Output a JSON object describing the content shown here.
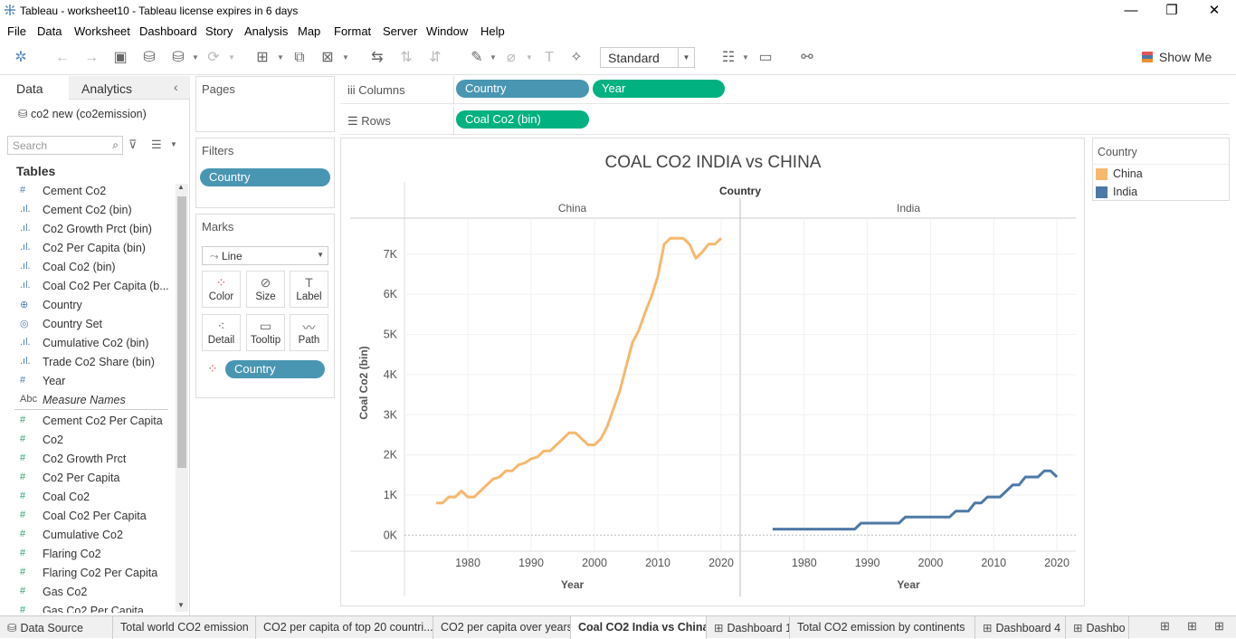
{
  "window": {
    "title": "Tableau - worksheet10 - Tableau license expires in 6 days",
    "minimize": "—",
    "restore": "❐",
    "close": "✕"
  },
  "menu": [
    "File",
    "Data",
    "Worksheet",
    "Dashboard",
    "Story",
    "Analysis",
    "Map",
    "Format",
    "Server",
    "Window",
    "Help"
  ],
  "toolbar": {
    "fit": "Standard",
    "show_me": "Show Me"
  },
  "left_panel": {
    "tab_data": "Data",
    "tab_analytics": "Analytics",
    "datasource": "co2 new (co2emission)",
    "search_placeholder": "Search",
    "tables_heading": "Tables",
    "fields": [
      {
        "icon": "#",
        "label": "Cement Co2",
        "kind": "dim"
      },
      {
        "icon": ".ıl.",
        "label": "Cement Co2 (bin)",
        "kind": "dim"
      },
      {
        "icon": ".ıl.",
        "label": "Co2 Growth Prct (bin)",
        "kind": "dim"
      },
      {
        "icon": ".ıl.",
        "label": "Co2 Per Capita (bin)",
        "kind": "dim"
      },
      {
        "icon": ".ıl.",
        "label": "Coal Co2 (bin)",
        "kind": "dim"
      },
      {
        "icon": ".ıl.",
        "label": "Coal Co2 Per Capita (b...",
        "kind": "dim"
      },
      {
        "icon": "⊕",
        "label": "Country",
        "kind": "dim"
      },
      {
        "icon": "◎",
        "label": "Country Set",
        "kind": "dim"
      },
      {
        "icon": ".ıl.",
        "label": "Cumulative Co2 (bin)",
        "kind": "dim"
      },
      {
        "icon": ".ıl.",
        "label": "Trade Co2 Share (bin)",
        "kind": "dim"
      },
      {
        "icon": "#",
        "label": "Year",
        "kind": "dim"
      },
      {
        "icon": "Abc",
        "label": "Measure Names",
        "kind": "measname"
      },
      {
        "icon": "#",
        "label": "Cement Co2 Per Capita",
        "kind": "meas"
      },
      {
        "icon": "#",
        "label": "Co2",
        "kind": "meas"
      },
      {
        "icon": "#",
        "label": "Co2 Growth Prct",
        "kind": "meas"
      },
      {
        "icon": "#",
        "label": "Co2 Per Capita",
        "kind": "meas"
      },
      {
        "icon": "#",
        "label": "Coal Co2",
        "kind": "meas"
      },
      {
        "icon": "#",
        "label": "Coal Co2 Per Capita",
        "kind": "meas"
      },
      {
        "icon": "#",
        "label": "Cumulative Co2",
        "kind": "meas"
      },
      {
        "icon": "#",
        "label": "Flaring Co2",
        "kind": "meas"
      },
      {
        "icon": "#",
        "label": "Flaring Co2 Per Capita",
        "kind": "meas"
      },
      {
        "icon": "#",
        "label": "Gas Co2",
        "kind": "meas"
      },
      {
        "icon": "#",
        "label": "Gas Co2 Per Capita",
        "kind": "meas"
      }
    ]
  },
  "pages": {
    "label": "Pages"
  },
  "filters": {
    "label": "Filters",
    "pill": "Country"
  },
  "marks": {
    "label": "Marks",
    "type": "Line",
    "buttons": [
      "Color",
      "Size",
      "Label",
      "Detail",
      "Tooltip",
      "Path"
    ],
    "pill": "Country"
  },
  "shelves": {
    "columns_label": "Columns",
    "columns": [
      "Country",
      "Year"
    ],
    "rows_label": "Rows",
    "rows": [
      "Coal Co2 (bin)"
    ]
  },
  "legend": {
    "title": "Country",
    "items": [
      {
        "name": "China",
        "color": "#f6b86e"
      },
      {
        "name": "India",
        "color": "#4e79a7"
      }
    ]
  },
  "chart_data": {
    "type": "line",
    "title": "COAL CO2 INDIA vs CHINA",
    "column_header": "Country",
    "panes": [
      "China",
      "India"
    ],
    "ylabel": "Coal Co2 (bin)",
    "xlabel": "Year",
    "ylim": [
      -400,
      7900
    ],
    "yticks": [
      0,
      1000,
      2000,
      3000,
      4000,
      5000,
      6000,
      7000
    ],
    "ytick_labels": [
      "0K",
      "1K",
      "2K",
      "3K",
      "4K",
      "5K",
      "6K",
      "7K"
    ],
    "xlim": [
      1970,
      2023
    ],
    "xticks": [
      1980,
      1990,
      2000,
      2010,
      2020
    ],
    "series": [
      {
        "name": "China",
        "color": "#f6b86e",
        "points": [
          [
            1975,
            800
          ],
          [
            1976,
            800
          ],
          [
            1977,
            950
          ],
          [
            1978,
            950
          ],
          [
            1979,
            1100
          ],
          [
            1980,
            950
          ],
          [
            1981,
            950
          ],
          [
            1982,
            1100
          ],
          [
            1983,
            1250
          ],
          [
            1984,
            1400
          ],
          [
            1985,
            1450
          ],
          [
            1986,
            1600
          ],
          [
            1987,
            1600
          ],
          [
            1988,
            1750
          ],
          [
            1989,
            1800
          ],
          [
            1990,
            1900
          ],
          [
            1991,
            1950
          ],
          [
            1992,
            2100
          ],
          [
            1993,
            2100
          ],
          [
            1994,
            2250
          ],
          [
            1995,
            2400
          ],
          [
            1996,
            2550
          ],
          [
            1997,
            2550
          ],
          [
            1998,
            2400
          ],
          [
            1999,
            2250
          ],
          [
            2000,
            2250
          ],
          [
            2001,
            2400
          ],
          [
            2002,
            2700
          ],
          [
            2003,
            3150
          ],
          [
            2004,
            3600
          ],
          [
            2005,
            4200
          ],
          [
            2006,
            4800
          ],
          [
            2007,
            5100
          ],
          [
            2008,
            5550
          ],
          [
            2009,
            5950
          ],
          [
            2010,
            6450
          ],
          [
            2011,
            7250
          ],
          [
            2012,
            7400
          ],
          [
            2013,
            7400
          ],
          [
            2014,
            7400
          ],
          [
            2015,
            7250
          ],
          [
            2016,
            6900
          ],
          [
            2017,
            7050
          ],
          [
            2018,
            7250
          ],
          [
            2019,
            7250
          ],
          [
            2020,
            7400
          ]
        ]
      },
      {
        "name": "India",
        "color": "#4e79a7",
        "points": [
          [
            1975,
            150
          ],
          [
            1976,
            150
          ],
          [
            1977,
            150
          ],
          [
            1978,
            150
          ],
          [
            1979,
            150
          ],
          [
            1980,
            150
          ],
          [
            1981,
            150
          ],
          [
            1982,
            150
          ],
          [
            1983,
            150
          ],
          [
            1984,
            150
          ],
          [
            1985,
            150
          ],
          [
            1986,
            150
          ],
          [
            1987,
            150
          ],
          [
            1988,
            150
          ],
          [
            1989,
            300
          ],
          [
            1990,
            300
          ],
          [
            1991,
            300
          ],
          [
            1992,
            300
          ],
          [
            1993,
            300
          ],
          [
            1994,
            300
          ],
          [
            1995,
            300
          ],
          [
            1996,
            450
          ],
          [
            1997,
            450
          ],
          [
            1998,
            450
          ],
          [
            1999,
            450
          ],
          [
            2000,
            450
          ],
          [
            2001,
            450
          ],
          [
            2002,
            450
          ],
          [
            2003,
            450
          ],
          [
            2004,
            600
          ],
          [
            2005,
            600
          ],
          [
            2006,
            600
          ],
          [
            2007,
            800
          ],
          [
            2008,
            800
          ],
          [
            2009,
            950
          ],
          [
            2010,
            950
          ],
          [
            2011,
            950
          ],
          [
            2012,
            1100
          ],
          [
            2013,
            1250
          ],
          [
            2014,
            1250
          ],
          [
            2015,
            1450
          ],
          [
            2016,
            1450
          ],
          [
            2017,
            1450
          ],
          [
            2018,
            1600
          ],
          [
            2019,
            1600
          ],
          [
            2020,
            1450
          ]
        ]
      }
    ]
  },
  "sheet_tabs": [
    {
      "label": "Data Source",
      "icon": "⛁",
      "active": false
    },
    {
      "label": "Total world CO2 emission",
      "icon": "",
      "active": false
    },
    {
      "label": "CO2 per capita of top 20 countri...",
      "icon": "",
      "active": false
    },
    {
      "label": "CO2 per capita over years",
      "icon": "",
      "active": false
    },
    {
      "label": "Coal CO2 India vs China",
      "icon": "",
      "active": true
    },
    {
      "label": "Dashboard 1",
      "icon": "⊞",
      "active": false
    },
    {
      "label": "Total CO2 emission by continents",
      "icon": "",
      "active": false
    },
    {
      "label": "Dashboard 4",
      "icon": "⊞",
      "active": false
    },
    {
      "label": "Dashbo",
      "icon": "⊞",
      "active": false
    }
  ]
}
